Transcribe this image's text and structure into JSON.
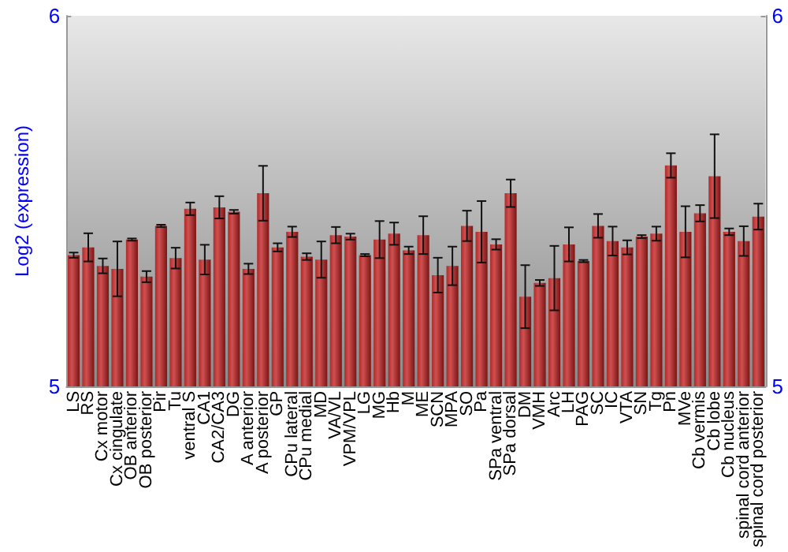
{
  "chart_data": {
    "type": "bar",
    "ylabel": "Log2 (expression)",
    "categories": [
      "LS",
      "RS",
      "Cx motor",
      "Cx cingulate",
      "OB anterior",
      "OB posterior",
      "Pir",
      "Tu",
      "ventral S",
      "CA1",
      "CA2/CA3",
      "DG",
      "A anterior",
      "A posterior",
      "GP",
      "CPu lateral",
      "CPu medial",
      "MD",
      "VA/VL",
      "VPM/VPL",
      "LG",
      "MG",
      "Hb",
      "M",
      "ME",
      "SCN",
      "MPA",
      "SO",
      "Pa",
      "SPa ventral",
      "SPa dorsal",
      "DM",
      "VMH",
      "Arc",
      "LH",
      "PAG",
      "SC",
      "IC",
      "VTA",
      "SN",
      "Tg",
      "Pn",
      "MVe",
      "Cb vermis",
      "Cb lobe",
      "Cb nucleus",
      "spinal cord anterior",
      "spinal cord posterior"
    ],
    "values": [
      5.354,
      5.375,
      5.325,
      5.317,
      5.396,
      5.296,
      5.433,
      5.346,
      5.479,
      5.342,
      5.483,
      5.471,
      5.317,
      5.521,
      5.375,
      5.417,
      5.35,
      5.342,
      5.408,
      5.404,
      5.354,
      5.396,
      5.412,
      5.367,
      5.408,
      5.3,
      5.325,
      5.433,
      5.417,
      5.383,
      5.521,
      5.242,
      5.279,
      5.292,
      5.383,
      5.338,
      5.433,
      5.392,
      5.375,
      5.404,
      5.412,
      5.596,
      5.417,
      5.467,
      5.567,
      5.417,
      5.392,
      5.458
    ],
    "errors": [
      0.007,
      0.038,
      0.02,
      0.074,
      0.003,
      0.015,
      0.003,
      0.028,
      0.017,
      0.04,
      0.03,
      0.005,
      0.014,
      0.074,
      0.011,
      0.014,
      0.009,
      0.049,
      0.022,
      0.008,
      0.003,
      0.05,
      0.03,
      0.01,
      0.051,
      0.047,
      0.052,
      0.041,
      0.083,
      0.014,
      0.037,
      0.085,
      0.008,
      0.087,
      0.046,
      0.003,
      0.032,
      0.039,
      0.019,
      0.004,
      0.019,
      0.033,
      0.069,
      0.022,
      0.113,
      0.009,
      0.04,
      0.035
    ],
    "color": "#b02a2a",
    "ylim": [
      5,
      6
    ],
    "yticks": [
      5,
      6
    ],
    "y2lim": [
      5,
      6
    ],
    "y2ticks": [
      5,
      6
    ],
    "grid": false
  }
}
